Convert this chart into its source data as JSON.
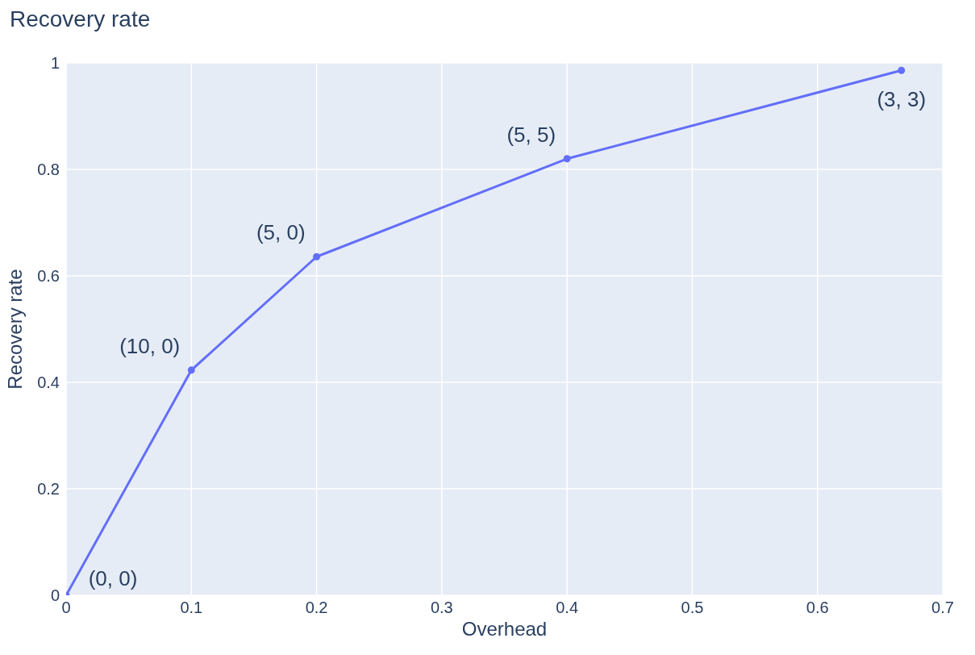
{
  "chart_data": {
    "type": "line",
    "title": "Recovery rate",
    "xlabel": "Overhead",
    "ylabel": "Recovery rate",
    "x": [
      0,
      0.1,
      0.2,
      0.4,
      0.667
    ],
    "series": [
      {
        "color": "#636efa",
        "values": [
          0,
          0.423,
          0.636,
          0.82,
          0.986
        ]
      }
    ],
    "annotations": [
      {
        "text": "(0, 0)",
        "x": 0,
        "y": 0
      },
      {
        "text": "(10, 0)",
        "x": 0.1,
        "y": 0.423
      },
      {
        "text": "(5, 0)",
        "x": 0.2,
        "y": 0.636
      },
      {
        "text": "(5, 5)",
        "x": 0.4,
        "y": 0.82
      },
      {
        "text": "(3, 3)",
        "x": 0.667,
        "y": 0.986
      }
    ],
    "xlim": [
      0,
      0.7
    ],
    "xticks": [
      0,
      0.1,
      0.2,
      0.3,
      0.4,
      0.5,
      0.6,
      0.7
    ],
    "ylim": [
      0,
      1
    ],
    "yticks": [
      0,
      0.2,
      0.4,
      0.6,
      0.8,
      1
    ],
    "grid": true,
    "marker": "circle",
    "line_style": "solid",
    "legend": false
  }
}
